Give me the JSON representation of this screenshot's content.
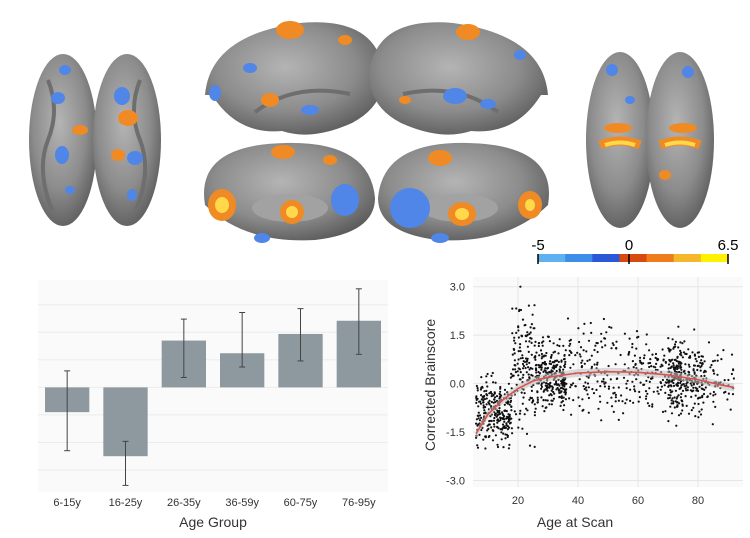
{
  "colorbar": {
    "labels": [
      "-5",
      "0",
      "6.5"
    ],
    "colors": [
      "#5fb2ef",
      "#3d8ee9",
      "#2b57d9",
      "#d94a10",
      "#f07d1d",
      "#f5b82a",
      "#fff200"
    ],
    "range": [
      -5,
      6.5
    ]
  },
  "brain_colors": {
    "cortex": "#8a8a8a",
    "positive": "#f08a24",
    "positive_hot": "#ffd94a",
    "negative": "#4f86e8"
  },
  "chart_data": [
    {
      "type": "bar",
      "title": "",
      "xlabel": "Age Group",
      "ylabel": "",
      "categories": [
        "6-15y",
        "16-25y",
        "26-35y",
        "36-59y",
        "60-75y",
        "76-95y"
      ],
      "values": [
        -0.45,
        -1.25,
        0.85,
        0.62,
        0.97,
        1.21
      ],
      "error_low": [
        -1.15,
        -1.78,
        0.18,
        0.37,
        0.48,
        0.6
      ],
      "error_high": [
        0.3,
        -0.98,
        1.24,
        1.36,
        1.43,
        1.79
      ],
      "ylim": [
        -1.9,
        1.95
      ],
      "color": "#8e999f",
      "grid": false
    },
    {
      "type": "scatter",
      "title": "",
      "xlabel": "Age at Scan",
      "ylabel": "Corrected Brainscore",
      "xticks": [
        "20",
        "40",
        "60",
        "80"
      ],
      "yticks": [
        "3.0",
        "1.5",
        "0.0",
        "-1.5",
        "-3.0"
      ],
      "xlim": [
        5,
        95
      ],
      "ylim": [
        -3.2,
        3.3
      ],
      "point_color": "#111111",
      "fit_color": "#d9534f",
      "fit": [
        {
          "x": 6,
          "y": -1.55
        },
        {
          "x": 10,
          "y": -0.95
        },
        {
          "x": 15,
          "y": -0.5
        },
        {
          "x": 20,
          "y": -0.15
        },
        {
          "x": 25,
          "y": 0.08
        },
        {
          "x": 30,
          "y": 0.2
        },
        {
          "x": 40,
          "y": 0.33
        },
        {
          "x": 50,
          "y": 0.37
        },
        {
          "x": 60,
          "y": 0.35
        },
        {
          "x": 70,
          "y": 0.27
        },
        {
          "x": 80,
          "y": 0.12
        },
        {
          "x": 88,
          "y": -0.05
        },
        {
          "x": 92,
          "y": -0.12
        }
      ],
      "clusters": [
        {
          "x": [
            6,
            18
          ],
          "y_mean": -0.85,
          "y_sd": 0.5,
          "n": 260
        },
        {
          "x": [
            18,
            26
          ],
          "y_mean": 0.6,
          "y_sd": 1.0,
          "n": 150
        },
        {
          "x": [
            26,
            36
          ],
          "y_mean": 0.2,
          "y_sd": 0.5,
          "n": 260
        },
        {
          "x": [
            36,
            60
          ],
          "y_mean": 0.4,
          "y_sd": 0.65,
          "n": 180
        },
        {
          "x": [
            60,
            75
          ],
          "y_mean": 0.35,
          "y_sd": 0.6,
          "n": 140
        },
        {
          "x": [
            70,
            82
          ],
          "y_mean": 0.15,
          "y_sd": 0.55,
          "n": 230
        },
        {
          "x": [
            82,
            92
          ],
          "y_mean": 0.0,
          "y_sd": 0.5,
          "n": 60
        }
      ]
    }
  ]
}
